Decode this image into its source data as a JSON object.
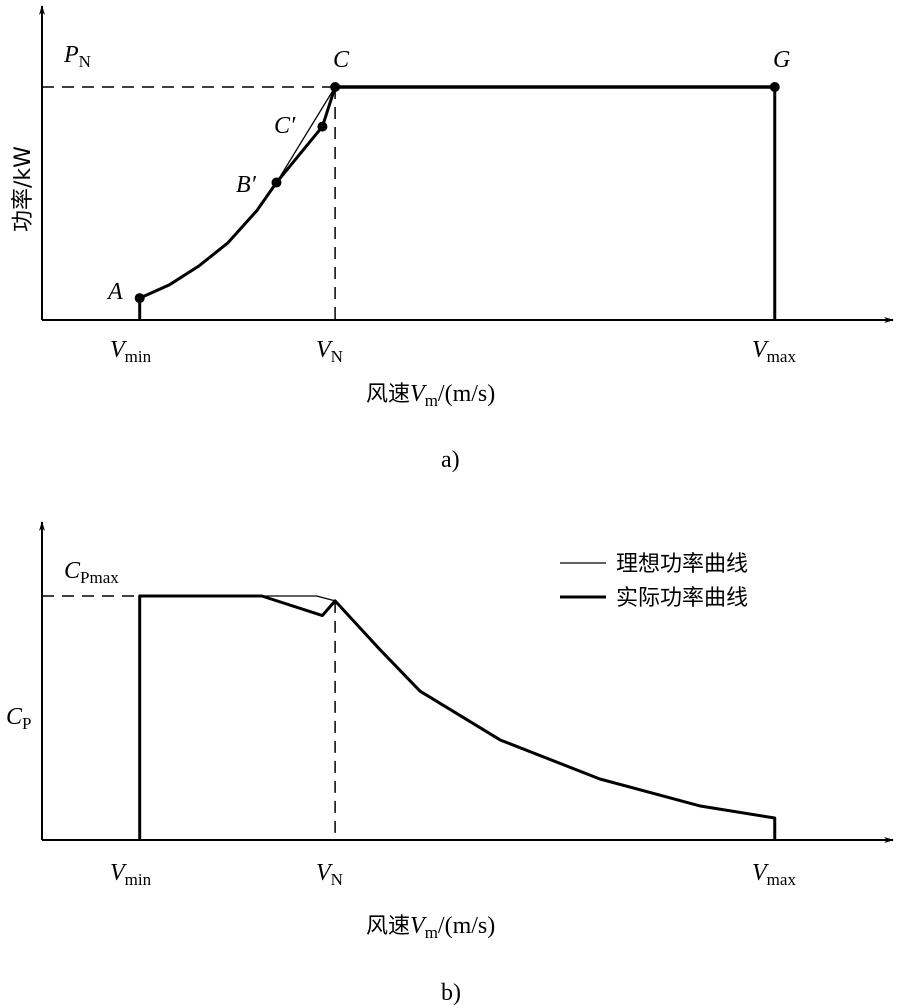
{
  "chart_data": [
    {
      "type": "line",
      "caption": "a)",
      "ylabel": "功率/kW",
      "xlabel_prefix": "风速",
      "xlabel_var": "V",
      "xlabel_sub": "m",
      "xlabel_unit": "/(m/s)",
      "xlim": [
        0,
        8.8
      ],
      "ylim": [
        0,
        1.35
      ],
      "x_ticks": [
        {
          "v": 1,
          "main": "V",
          "sub": "min"
        },
        {
          "v": 3,
          "main": "V",
          "sub": "N"
        },
        {
          "v": 7.5,
          "main": "V",
          "sub": "max"
        }
      ],
      "y_ref": {
        "value": 1,
        "main": "P",
        "sub": "N"
      },
      "curve": [
        [
          1,
          0.094
        ],
        [
          1.3,
          0.15
        ],
        [
          1.6,
          0.23
        ],
        [
          1.9,
          0.33
        ],
        [
          2.2,
          0.47
        ],
        [
          2.4,
          0.59
        ]
      ],
      "actual_segment": [
        [
          2.4,
          0.59
        ],
        [
          2.87,
          0.83
        ],
        [
          3,
          1
        ]
      ],
      "ideal_segment": [
        [
          2.4,
          0.59
        ],
        [
          3,
          1
        ]
      ],
      "rated_line": [
        [
          3,
          1
        ],
        [
          7.5,
          1
        ]
      ],
      "points": [
        {
          "label": "A",
          "prime": "",
          "x": 1,
          "y": 0.094
        },
        {
          "label": "B",
          "prime": "′",
          "x": 2.4,
          "y": 0.59
        },
        {
          "label": "C",
          "prime": "′",
          "x": 2.87,
          "y": 0.83
        },
        {
          "label": "C",
          "prime": "",
          "x": 3,
          "y": 1
        },
        {
          "label": "G",
          "prime": "",
          "x": 7.5,
          "y": 1
        }
      ]
    },
    {
      "type": "line",
      "caption": "b)",
      "ylabel_main": "C",
      "ylabel_sub": "P",
      "xlabel_prefix": "风速",
      "xlabel_var": "V",
      "xlabel_sub": "m",
      "xlabel_unit": "/(m/s)",
      "xlim": [
        0,
        8.8
      ],
      "ylim": [
        0,
        1.3
      ],
      "x_ticks": [
        {
          "v": 1,
          "main": "V",
          "sub": "min"
        },
        {
          "v": 3,
          "main": "V",
          "sub": "N"
        },
        {
          "v": 7.5,
          "main": "V",
          "sub": "max"
        }
      ],
      "y_ref": {
        "value": 1,
        "main": "C",
        "sub": "Pmax"
      },
      "legend": {
        "position": "top-right",
        "entries": [
          "理想功率曲线",
          "实际功率曲线"
        ]
      },
      "series": [
        {
          "name": "理想功率曲线",
          "points": [
            [
              2.25,
              1
            ],
            [
              2.81,
              1
            ],
            [
              3,
              0.98
            ]
          ]
        },
        {
          "name": "实际功率曲线",
          "points": [
            [
              1,
              0
            ],
            [
              1,
              1
            ],
            [
              2.25,
              1
            ],
            [
              2.87,
              0.92
            ],
            [
              3,
              0.98
            ],
            [
              3.46,
              0.78
            ],
            [
              3.87,
              0.61
            ],
            [
              4.69,
              0.41
            ],
            [
              5.71,
              0.25
            ],
            [
              6.73,
              0.14
            ],
            [
              7.5,
              0.09
            ],
            [
              7.5,
              0
            ]
          ]
        }
      ]
    }
  ]
}
